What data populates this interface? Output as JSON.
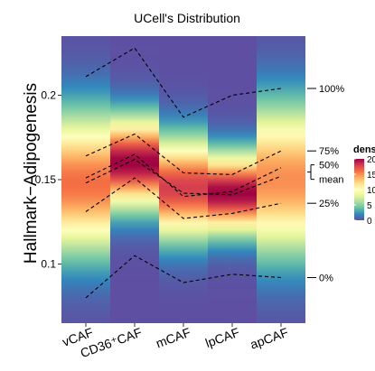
{
  "chart_data": {
    "type": "heatmap",
    "title": "UCell's Distribution",
    "xlabel": "",
    "ylabel": "Hallmark−Adipogenesis",
    "ylim": [
      0.065,
      0.235
    ],
    "y_ticks": [
      0.1,
      0.15,
      0.2
    ],
    "y_tick_labels": [
      "0.1",
      "0.15",
      "0.2"
    ],
    "categories": [
      "vCAF",
      "CD36⁺CAF",
      "mCAF",
      "lpCAF",
      "apCAF"
    ],
    "category_labels": [
      "vCAF",
      "CD36⁺CAF",
      "mCAF",
      "lpCAF",
      "apCAF"
    ],
    "density_peak_y": [
      0.148,
      0.16,
      0.145,
      0.142,
      0.15
    ],
    "density_peak_value": [
      16,
      20,
      18,
      20,
      15
    ],
    "density_spread": [
      0.028,
      0.018,
      0.02,
      0.016,
      0.03
    ],
    "series": [
      {
        "name": "100%",
        "values": [
          0.211,
          0.228,
          0.187,
          0.2,
          0.204
        ]
      },
      {
        "name": "75%",
        "values": [
          0.164,
          0.177,
          0.154,
          0.153,
          0.167
        ]
      },
      {
        "name": "50%",
        "values": [
          0.151,
          0.165,
          0.14,
          0.143,
          0.157
        ]
      },
      {
        "name": "mean",
        "values": [
          0.148,
          0.162,
          0.142,
          0.141,
          0.152
        ]
      },
      {
        "name": "25%",
        "values": [
          0.131,
          0.151,
          0.127,
          0.13,
          0.136
        ]
      },
      {
        "name": "0%",
        "values": [
          0.08,
          0.105,
          0.089,
          0.094,
          0.092
        ]
      }
    ],
    "right_labels": [
      "100%",
      "75%",
      "50%",
      "mean",
      "25%",
      "0%"
    ],
    "legend": {
      "title": "dens",
      "position": "right",
      "ticks": [
        20,
        15,
        10,
        5,
        0
      ],
      "tick_labels": [
        "20",
        "15",
        "10",
        "5",
        "0"
      ]
    },
    "grid": false,
    "colors": {
      "background": "#5E4FA2",
      "line": "#000000",
      "palette": [
        "#5E4FA2",
        "#3288BD",
        "#66C2A5",
        "#ABDDA4",
        "#E6F598",
        "#FFFFBF",
        "#FEE08B",
        "#FDAE61",
        "#F46D43",
        "#D53E4F",
        "#9E0142"
      ]
    }
  }
}
